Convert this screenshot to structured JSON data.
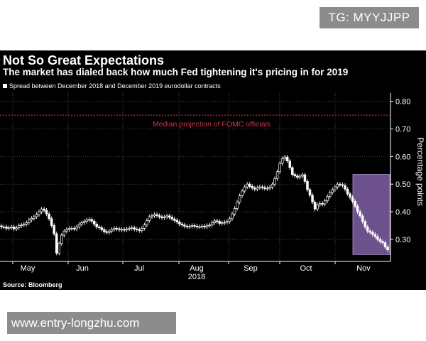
{
  "watermark_top": "TG: MYYJJPP",
  "watermark_bottom": "www.entry-longzhu.com",
  "chart_data": {
    "type": "candlestick",
    "title": "Not So Great Expectations",
    "subtitle": "The market has dialed back how much Fed tightening it's pricing in for 2019",
    "legend": [
      "Spread between December 2018 and December 2019 eurodollar contracts"
    ],
    "ylabel": "Percentage points",
    "xlabel": "2018",
    "ylim": [
      0.22,
      0.83
    ],
    "yticks": [
      0.3,
      0.4,
      0.5,
      0.6,
      0.7,
      0.8
    ],
    "ytick_labels": [
      "0.30",
      "0.40",
      "0.50",
      "0.60",
      "0.70",
      "0.80"
    ],
    "months": [
      "May",
      "Jun",
      "Jul",
      "Aug",
      "Sep",
      "Oct",
      "Nov"
    ],
    "reference_line": {
      "value": 0.75,
      "label": "Median projection of FOMC officials",
      "color": "#d63050"
    },
    "highlight": {
      "ymin": 0.245,
      "ymax": 0.535,
      "color": "#7f5fa6"
    },
    "series": [
      {
        "name": "Spread",
        "values": [
          0.345,
          0.345,
          0.34,
          0.342,
          0.345,
          0.338,
          0.342,
          0.35,
          0.352,
          0.355,
          0.36,
          0.37,
          0.376,
          0.382,
          0.39,
          0.4,
          0.41,
          0.405,
          0.392,
          0.375,
          0.35,
          0.32,
          0.25,
          0.285,
          0.315,
          0.33,
          0.335,
          0.34,
          0.34,
          0.338,
          0.345,
          0.355,
          0.36,
          0.365,
          0.37,
          0.372,
          0.366,
          0.355,
          0.345,
          0.342,
          0.335,
          0.328,
          0.325,
          0.33,
          0.336,
          0.34,
          0.338,
          0.335,
          0.336,
          0.334,
          0.338,
          0.34,
          0.342,
          0.337,
          0.335,
          0.332,
          0.34,
          0.352,
          0.368,
          0.382,
          0.385,
          0.39,
          0.386,
          0.382,
          0.378,
          0.381,
          0.385,
          0.38,
          0.374,
          0.369,
          0.363,
          0.356,
          0.352,
          0.348,
          0.346,
          0.347,
          0.35,
          0.348,
          0.345,
          0.346,
          0.348,
          0.345,
          0.35,
          0.352,
          0.36,
          0.367,
          0.365,
          0.358,
          0.36,
          0.362,
          0.365,
          0.375,
          0.392,
          0.412,
          0.435,
          0.458,
          0.475,
          0.49,
          0.5,
          0.492,
          0.486,
          0.482,
          0.487,
          0.49,
          0.488,
          0.484,
          0.485,
          0.489,
          0.5,
          0.52,
          0.545,
          0.575,
          0.592,
          0.598,
          0.584,
          0.56,
          0.535,
          0.53,
          0.525,
          0.529,
          0.534,
          0.51,
          0.48,
          0.46,
          0.435,
          0.41,
          0.425,
          0.43,
          0.428,
          0.44,
          0.455,
          0.47,
          0.48,
          0.49,
          0.5,
          0.498,
          0.495,
          0.482,
          0.465,
          0.452,
          0.438,
          0.42,
          0.4,
          0.385,
          0.365,
          0.345,
          0.33,
          0.325,
          0.318,
          0.31,
          0.3,
          0.292,
          0.288,
          0.272,
          0.262
        ]
      }
    ]
  }
}
